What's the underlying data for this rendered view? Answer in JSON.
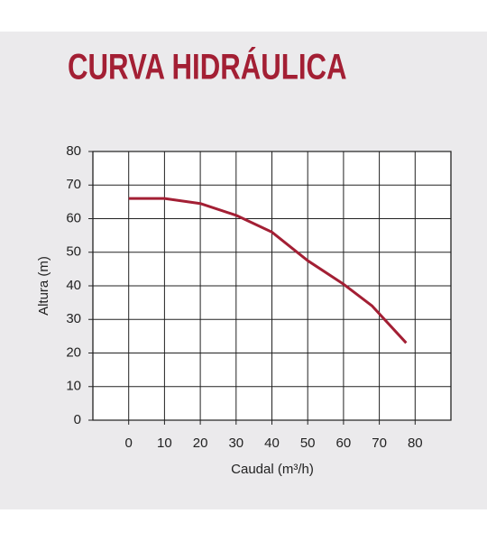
{
  "chart_data": {
    "type": "line",
    "title": "CURVA HIDRÁULICA",
    "x_label": "Caudal (m³/h)",
    "y_label": "Altura (m)",
    "x": [
      0,
      10,
      20,
      30,
      40,
      50,
      60,
      68,
      77.5
    ],
    "values": [
      66,
      66,
      64.5,
      61,
      56,
      47.5,
      40.5,
      34,
      23
    ],
    "color": "#a31f34",
    "xlim": [
      -10,
      90
    ],
    "xticks": [
      0,
      10,
      20,
      30,
      40,
      50,
      60,
      70,
      80
    ],
    "ylim": [
      0,
      80
    ],
    "yticks": [
      0,
      10,
      20,
      30,
      40,
      50,
      60,
      70,
      80
    ],
    "grid": true
  }
}
